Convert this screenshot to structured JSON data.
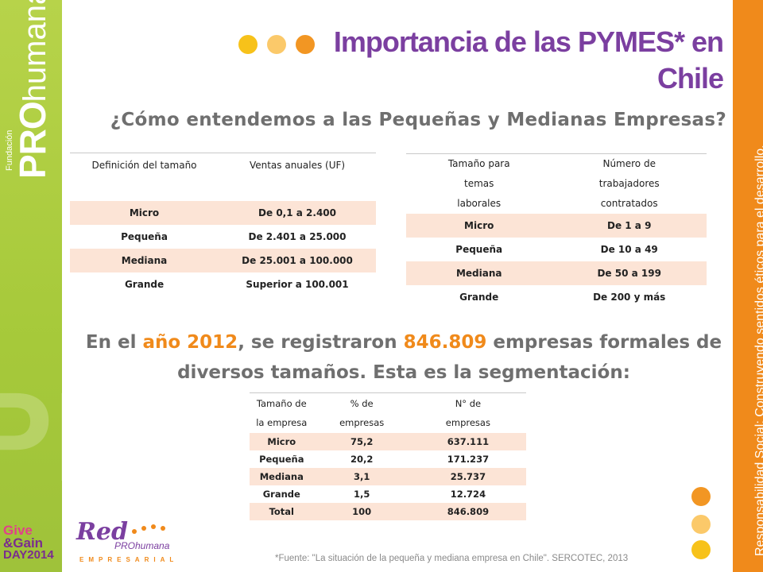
{
  "branding": {
    "fundacion": "Fundación",
    "pro": "PRO",
    "humana": "humana",
    "watermark": "PRO",
    "give_gain_line1": "Give",
    "give_gain_line2": "&Gain",
    "give_gain_line3": "DAY2014",
    "red_word": "Red",
    "red_pro": "PROhumana",
    "red_empresarial": "EMPRESARIAL",
    "right_band_text": "Responsabilidad Social: Construyendo sentidos éticos para el desarrollo.",
    "colors": {
      "purple": "#7b3fa0",
      "orange": "#f08a1b",
      "green": "#a6c93a",
      "shade": "#fce4d6"
    }
  },
  "header": {
    "title": "Importancia de las PYMES* en Chile",
    "subtitle": "¿Cómo entendemos a las Pequeñas y Medianas Empresas?"
  },
  "table_sales": {
    "headers": [
      "Definición del tamaño",
      "Ventas anuales (UF)"
    ],
    "rows": [
      [
        "Micro",
        "De 0,1 a 2.400"
      ],
      [
        "Pequeña",
        "De 2.401 a 25.000"
      ],
      [
        "Mediana",
        "De 25.001 a 100.000"
      ],
      [
        "Grande",
        "Superior a 100.001"
      ]
    ]
  },
  "table_workers": {
    "headers": [
      "Tamaño para temas laborales",
      "Número de trabajadores contratados"
    ],
    "rows": [
      [
        "Micro",
        "De 1 a 9"
      ],
      [
        "Pequeña",
        "De 10 a 49"
      ],
      [
        "Mediana",
        "De 50 a 199"
      ],
      [
        "Grande",
        "De 200 y más"
      ]
    ]
  },
  "statement": {
    "part1": "En el ",
    "year": "año 2012",
    "part2": ", se registraron ",
    "count": "846.809",
    "part3": " empresas formales de diversos tamaños. Esta es la segmentación:"
  },
  "table_segmentation": {
    "headers": [
      "Tamaño de la empresa",
      "% de empresas",
      "N° de empresas"
    ],
    "rows": [
      [
        "Micro",
        "75,2",
        "637.111"
      ],
      [
        "Pequeña",
        "20,2",
        "171.237"
      ],
      [
        "Mediana",
        "3,1",
        "25.737"
      ],
      [
        "Grande",
        "1,5",
        "12.724"
      ],
      [
        "Total",
        "100",
        "846.809"
      ]
    ]
  },
  "footnote": "*Fuente: \"La situación de la pequeña y mediana empresa en Chile\". SERCOTEC, 2013"
}
